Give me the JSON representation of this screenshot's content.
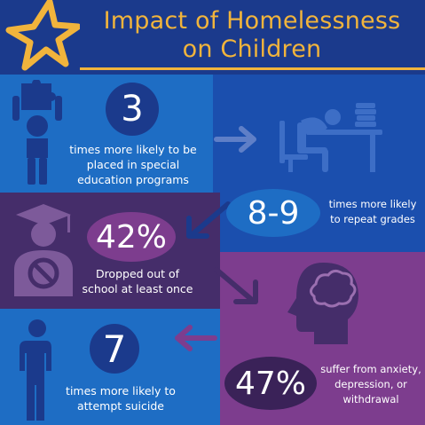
{
  "title": "Impact of Homelessness on Children",
  "colors": {
    "navy": "#1b3a8c",
    "blue": "#1e6dc4",
    "royal": "#1b4fae",
    "dark_purple": "#452d6a",
    "purple": "#7d3d8e",
    "gold": "#f1b43c"
  },
  "stats": [
    {
      "value": "3",
      "text": "times more likely to be placed in special education programs",
      "icon": "puzzle-head-person-icon"
    },
    {
      "value": "8-9",
      "text": "times more likely to repeat grades",
      "icon": "student-at-desk-icon"
    },
    {
      "value": "42%",
      "text": "Dropped out of school at least once",
      "icon": "graduate-prohibited-icon"
    },
    {
      "value": "47%",
      "text": "suffer from anxiety, depression, or withdrawal",
      "icon": "head-brain-icon"
    },
    {
      "value": "7",
      "text": "times more likely to attempt suicide",
      "icon": "sad-person-icon"
    }
  ]
}
